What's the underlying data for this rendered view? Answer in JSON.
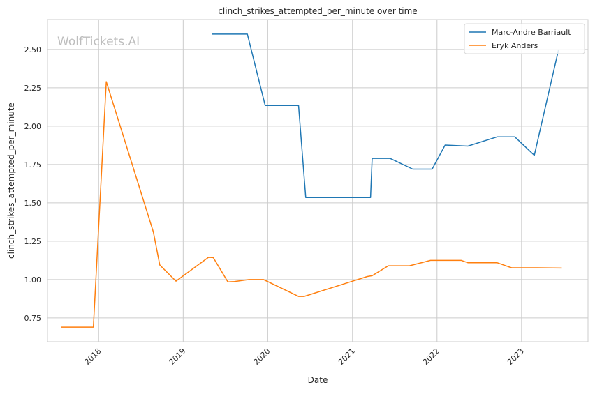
{
  "chart_data": {
    "type": "line",
    "title": "clinch_strikes_attempted_per_minute over time",
    "xlabel": "Date",
    "ylabel": "clinch_strikes_attempted_per_minute",
    "watermark": "WolfTickets.AI",
    "x_type": "date",
    "xlim": [
      "2017-05-25",
      "2023-10-15"
    ],
    "ylim": [
      0.595,
      2.695
    ],
    "x_ticks": [
      {
        "value": "2018-01-01",
        "label": "2018"
      },
      {
        "value": "2019-01-01",
        "label": "2019"
      },
      {
        "value": "2020-01-01",
        "label": "2020"
      },
      {
        "value": "2021-01-01",
        "label": "2021"
      },
      {
        "value": "2022-01-01",
        "label": "2022"
      },
      {
        "value": "2023-01-01",
        "label": "2023"
      }
    ],
    "y_ticks": [
      {
        "value": 0.75,
        "label": "0.75"
      },
      {
        "value": 1.0,
        "label": "1.00"
      },
      {
        "value": 1.25,
        "label": "1.25"
      },
      {
        "value": 1.5,
        "label": "1.50"
      },
      {
        "value": 1.75,
        "label": "1.75"
      },
      {
        "value": 2.0,
        "label": "2.00"
      },
      {
        "value": 2.25,
        "label": "2.25"
      },
      {
        "value": 2.5,
        "label": "2.50"
      }
    ],
    "grid": true,
    "legend_position": "top-right",
    "series": [
      {
        "name": "Marc-Andre Barriault",
        "color": "#1f77b4",
        "points": [
          {
            "x": "2019-05-04",
            "y": 2.6
          },
          {
            "x": "2019-10-05",
            "y": 2.6
          },
          {
            "x": "2019-12-21",
            "y": 2.135
          },
          {
            "x": "2020-05-13",
            "y": 2.135
          },
          {
            "x": "2020-06-13",
            "y": 1.535
          },
          {
            "x": "2021-03-20",
            "y": 1.535
          },
          {
            "x": "2021-03-27",
            "y": 1.79
          },
          {
            "x": "2021-06-12",
            "y": 1.79
          },
          {
            "x": "2021-09-18",
            "y": 1.72
          },
          {
            "x": "2021-12-11",
            "y": 1.72
          },
          {
            "x": "2022-02-05",
            "y": 1.877
          },
          {
            "x": "2022-05-14",
            "y": 1.87
          },
          {
            "x": "2022-09-17",
            "y": 1.93
          },
          {
            "x": "2022-12-03",
            "y": 1.93
          },
          {
            "x": "2023-02-25",
            "y": 1.81
          },
          {
            "x": "2023-06-10",
            "y": 2.5
          }
        ]
      },
      {
        "name": "Eryk Anders",
        "color": "#ff7f0e",
        "points": [
          {
            "x": "2017-07-22",
            "y": 0.69
          },
          {
            "x": "2017-12-09",
            "y": 0.69
          },
          {
            "x": "2018-02-03",
            "y": 2.29
          },
          {
            "x": "2018-08-25",
            "y": 1.31
          },
          {
            "x": "2018-09-22",
            "y": 1.095
          },
          {
            "x": "2018-12-01",
            "y": 0.99
          },
          {
            "x": "2019-04-20",
            "y": 1.145
          },
          {
            "x": "2019-05-11",
            "y": 1.143
          },
          {
            "x": "2019-07-13",
            "y": 0.985
          },
          {
            "x": "2019-08-10",
            "y": 0.987
          },
          {
            "x": "2019-10-12",
            "y": 1.0
          },
          {
            "x": "2019-12-14",
            "y": 1.0
          },
          {
            "x": "2020-05-13",
            "y": 0.89
          },
          {
            "x": "2020-06-06",
            "y": 0.89
          },
          {
            "x": "2021-03-06",
            "y": 1.02
          },
          {
            "x": "2021-03-27",
            "y": 1.025
          },
          {
            "x": "2021-06-05",
            "y": 1.09
          },
          {
            "x": "2021-09-04",
            "y": 1.09
          },
          {
            "x": "2021-12-04",
            "y": 1.125
          },
          {
            "x": "2022-04-16",
            "y": 1.125
          },
          {
            "x": "2022-05-14",
            "y": 1.11
          },
          {
            "x": "2022-09-17",
            "y": 1.11
          },
          {
            "x": "2022-11-19",
            "y": 1.077
          },
          {
            "x": "2023-03-11",
            "y": 1.077
          },
          {
            "x": "2023-06-24",
            "y": 1.075
          }
        ]
      }
    ]
  }
}
